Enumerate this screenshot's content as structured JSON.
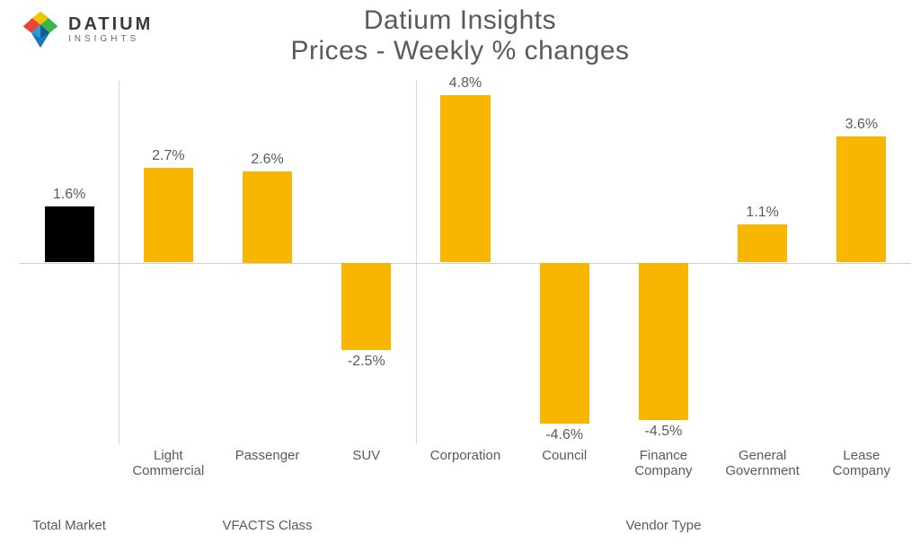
{
  "logo": {
    "name": "DATIUM",
    "sub": "INSIGHTS"
  },
  "title": {
    "line1": "Datium Insights",
    "line2": "Prices - Weekly % changes"
  },
  "chart": {
    "type": "bar",
    "background_color": "#ffffff",
    "baseline_color": "#cfcfcf",
    "separator_color": "#d6d6d6",
    "text_color": "#5a5a5a",
    "ylim": [
      -5.2,
      5.2
    ],
    "label_fontsize": 16,
    "axis_fontsize": 15,
    "bar_width": 0.5,
    "groups": [
      {
        "name": "Total Market",
        "start": 0,
        "count": 1
      },
      {
        "name": "VFACTS Class",
        "start": 1,
        "count": 3
      },
      {
        "name": "Vendor Type",
        "start": 4,
        "count": 5
      }
    ],
    "bars": [
      {
        "category": "",
        "value": 1.6,
        "label": "1.6%",
        "color": "#000000"
      },
      {
        "category": "Light\nCommercial",
        "value": 2.7,
        "label": "2.7%",
        "color": "#f8b600"
      },
      {
        "category": "Passenger",
        "value": 2.6,
        "label": "2.6%",
        "color": "#f8b600"
      },
      {
        "category": "SUV",
        "value": -2.5,
        "label": "-2.5%",
        "color": "#f8b600"
      },
      {
        "category": "Corporation",
        "value": 4.8,
        "label": "4.8%",
        "color": "#f8b600"
      },
      {
        "category": "Council",
        "value": -4.6,
        "label": "-4.6%",
        "color": "#f8b600"
      },
      {
        "category": "Finance\nCompany",
        "value": -4.5,
        "label": "-4.5%",
        "color": "#f8b600"
      },
      {
        "category": "General\nGovernment",
        "value": 1.1,
        "label": "1.1%",
        "color": "#f8b600"
      },
      {
        "category": "Lease\nCompany",
        "value": 3.6,
        "label": "3.6%",
        "color": "#f8b600"
      }
    ]
  }
}
